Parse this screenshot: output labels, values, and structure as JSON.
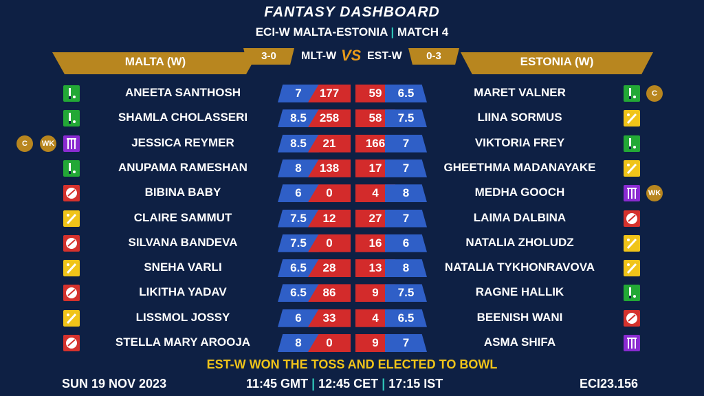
{
  "title": "FANTASY DASHBOARD",
  "subtitle": {
    "left": "ECI-W MALTA-ESTONIA",
    "sep": "|",
    "right": "MATCH 4"
  },
  "team_left": {
    "name": "MALTA (W)",
    "code": "MLT-W",
    "record": "3-0"
  },
  "team_right": {
    "name": "ESTONIA (W)",
    "code": "EST-W",
    "record": "0-3"
  },
  "vs": "VS",
  "colors": {
    "bat": "#23a836",
    "bowl": "#d5322d",
    "allrounder": "#f0c419",
    "keeper": "#8a2bd1",
    "gold": "#b8861f",
    "background": "#0e2044"
  },
  "left_players": [
    {
      "name": "ANEETA SANTHOSH",
      "role": "bat",
      "credit": "7",
      "points": "177",
      "badges": []
    },
    {
      "name": "SHAMLA CHOLASSERI",
      "role": "bat",
      "credit": "8.5",
      "points": "258",
      "badges": []
    },
    {
      "name": "JESSICA REYMER",
      "role": "wk",
      "credit": "8.5",
      "points": "21",
      "badges": [
        "C",
        "WK"
      ]
    },
    {
      "name": "ANUPAMA RAMESHAN",
      "role": "bat",
      "credit": "8",
      "points": "138",
      "badges": []
    },
    {
      "name": "BIBINA BABY",
      "role": "bowl",
      "credit": "6",
      "points": "0",
      "badges": []
    },
    {
      "name": "CLAIRE SAMMUT",
      "role": "ar",
      "credit": "7.5",
      "points": "12",
      "badges": []
    },
    {
      "name": "SILVANA BANDEVA",
      "role": "bowl",
      "credit": "7.5",
      "points": "0",
      "badges": []
    },
    {
      "name": "SNEHA VARLI",
      "role": "ar",
      "credit": "6.5",
      "points": "28",
      "badges": []
    },
    {
      "name": "LIKITHA YADAV",
      "role": "bowl",
      "credit": "6.5",
      "points": "86",
      "badges": []
    },
    {
      "name": "LISSMOL JOSSY",
      "role": "ar",
      "credit": "6",
      "points": "33",
      "badges": []
    },
    {
      "name": "STELLA MARY AROOJA",
      "role": "bowl",
      "credit": "8",
      "points": "0",
      "badges": []
    }
  ],
  "right_players": [
    {
      "name": "MARET VALNER",
      "role": "bat",
      "points": "59",
      "credit": "6.5",
      "badges": [
        "C"
      ]
    },
    {
      "name": "LIINA SORMUS",
      "role": "ar",
      "points": "58",
      "credit": "7.5",
      "badges": []
    },
    {
      "name": "VIKTORIA FREY",
      "role": "bat",
      "points": "166",
      "credit": "7",
      "badges": []
    },
    {
      "name": "GHEETHMA MADANAYAKE",
      "role": "ar",
      "points": "17",
      "credit": "7",
      "badges": []
    },
    {
      "name": "MEDHA GOOCH",
      "role": "wk",
      "points": "4",
      "credit": "8",
      "badges": [
        "WK"
      ]
    },
    {
      "name": "LAIMA DALBINA",
      "role": "bowl",
      "points": "27",
      "credit": "7",
      "badges": []
    },
    {
      "name": "NATALIA ZHOLUDZ",
      "role": "ar",
      "points": "16",
      "credit": "6",
      "badges": []
    },
    {
      "name": "NATALIA TYKHONRAVOVA",
      "role": "ar",
      "points": "13",
      "credit": "8",
      "badges": []
    },
    {
      "name": "RAGNE HALLIK",
      "role": "bat",
      "points": "9",
      "credit": "7.5",
      "badges": []
    },
    {
      "name": "BEENISH WANI",
      "role": "bowl",
      "points": "4",
      "credit": "6.5",
      "badges": []
    },
    {
      "name": "ASMA SHIFA",
      "role": "wk",
      "points": "9",
      "credit": "7",
      "badges": []
    }
  ],
  "toss": "EST-W WON THE TOSS AND ELECTED TO BOWL",
  "footer": {
    "date": "SUN 19 NOV 2023",
    "time_gmt": "11:45 GMT",
    "time_cet": "12:45 CET",
    "time_ist": "17:15 IST",
    "sep": "|",
    "code": "ECI23.156"
  }
}
